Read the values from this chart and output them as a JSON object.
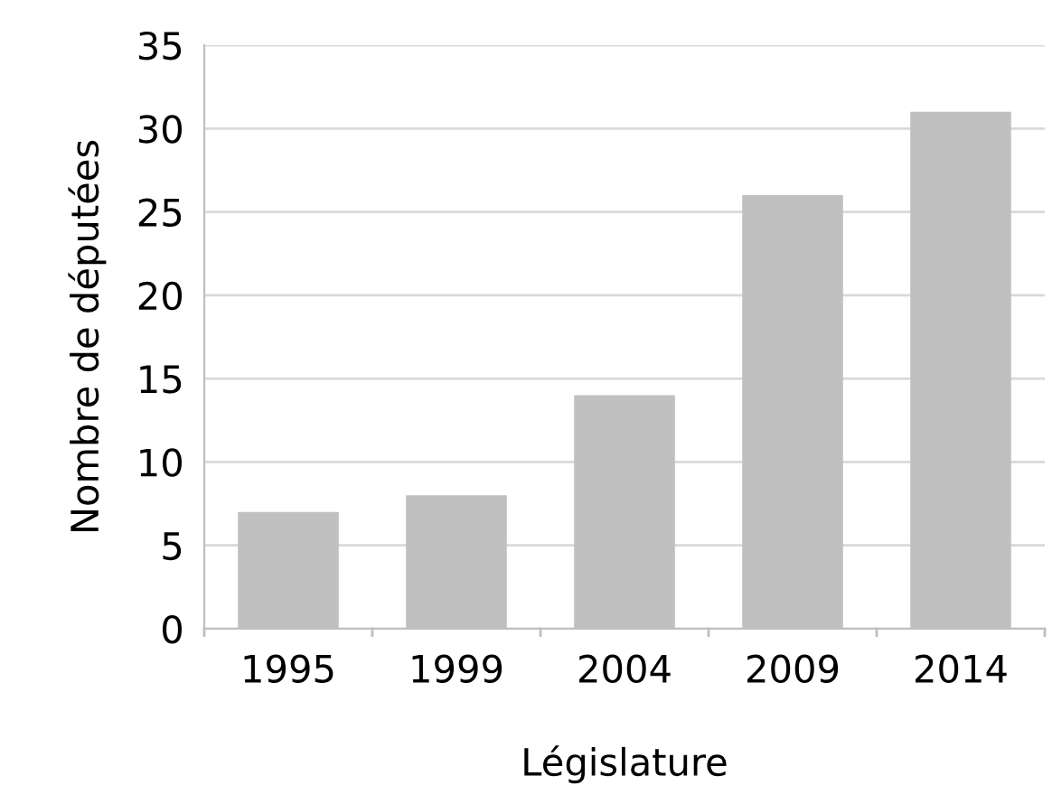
{
  "chart_data": {
    "type": "bar",
    "xlabel": "Législature",
    "ylabel": "Nombre de députées",
    "categories": [
      "1995",
      "1999",
      "2004",
      "2009",
      "2014"
    ],
    "values": [
      7,
      8,
      14,
      26,
      31
    ],
    "color": "#c0c0c0",
    "ylim": [
      0,
      35
    ],
    "yticks": [
      0,
      5,
      10,
      15,
      20,
      25,
      30,
      35
    ],
    "grid": "y",
    "legend": false
  }
}
